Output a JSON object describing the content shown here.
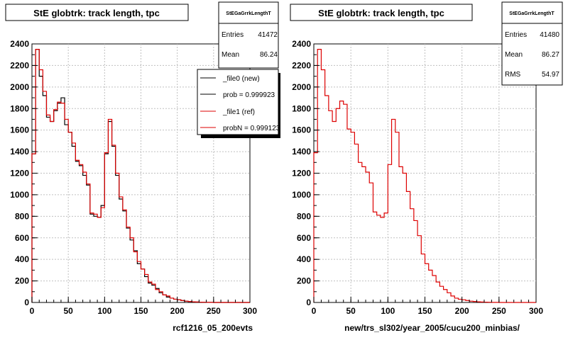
{
  "chart_data": [
    {
      "type": "histogram",
      "title": "StE globtrk: track length, tpc",
      "xlabel": "rcf1216_05_200evts",
      "xlim": [
        0,
        300
      ],
      "ylim": [
        0,
        2400
      ],
      "x_ticks": [
        0,
        50,
        100,
        150,
        200,
        250,
        300
      ],
      "y_ticks": [
        0,
        200,
        400,
        600,
        800,
        1000,
        1200,
        1400,
        1600,
        1800,
        2000,
        2200,
        2400
      ],
      "grid": true,
      "bin_width": 5,
      "stats": {
        "name": "StEGaGrrkLengthT",
        "entries_label": "Entries",
        "entries": "41472",
        "mean_label": "Mean",
        "mean": "86.24"
      },
      "legend": {
        "placement": "top-right",
        "entries": [
          "_file0 (new)",
          "prob = 0.999923",
          "_file1 (ref)",
          "probN = 0.999123"
        ]
      },
      "series": [
        {
          "color": "#000000",
          "values": [
            1380,
            2350,
            2100,
            1920,
            1720,
            1680,
            1780,
            1850,
            1900,
            1650,
            1580,
            1450,
            1310,
            1270,
            1180,
            1090,
            820,
            800,
            790,
            900,
            1380,
            1680,
            1450,
            1180,
            960,
            850,
            690,
            580,
            480,
            360,
            310,
            240,
            180,
            160,
            130,
            90,
            70,
            50,
            40,
            30,
            25,
            18,
            12,
            9,
            6,
            4,
            3,
            2,
            1,
            1,
            0,
            0,
            0,
            0,
            0,
            0,
            0,
            0,
            0,
            0
          ]
        },
        {
          "color": "#dd0000",
          "values": [
            1380,
            2350,
            2160,
            1960,
            1740,
            1680,
            1790,
            1860,
            1850,
            1700,
            1580,
            1480,
            1320,
            1280,
            1210,
            1100,
            830,
            820,
            790,
            880,
            1390,
            1700,
            1460,
            1200,
            980,
            860,
            700,
            600,
            470,
            380,
            310,
            260,
            190,
            170,
            120,
            100,
            70,
            60,
            40,
            30,
            25,
            18,
            12,
            9,
            6,
            4,
            3,
            2,
            1,
            1,
            0,
            0,
            0,
            0,
            0,
            0,
            0,
            0,
            0,
            0
          ]
        }
      ]
    },
    {
      "type": "histogram",
      "title": "StE globtrk: track length, tpc",
      "xlabel": "new/trs_sl302/year_2005/cucu200_minbias/",
      "xlim": [
        0,
        300
      ],
      "ylim": [
        0,
        2400
      ],
      "x_ticks": [
        0,
        50,
        100,
        150,
        200,
        250,
        300
      ],
      "y_ticks": [
        0,
        200,
        400,
        600,
        800,
        1000,
        1200,
        1400,
        1600,
        1800,
        2000,
        2200,
        2400
      ],
      "grid": true,
      "bin_width": 5,
      "stats": {
        "name": "StEGaGrrkLengthT",
        "entries_label": "Entries",
        "entries": "41480",
        "mean_label": "Mean",
        "mean": "86.27",
        "rms_label": "RMS",
        "rms": "54.97"
      },
      "series": [
        {
          "color": "#dd0000",
          "values": [
            1390,
            2350,
            2160,
            1920,
            1780,
            1680,
            1800,
            1870,
            1840,
            1610,
            1580,
            1470,
            1300,
            1260,
            1210,
            1110,
            840,
            810,
            790,
            830,
            1280,
            1700,
            1580,
            1260,
            1200,
            1030,
            870,
            760,
            620,
            450,
            360,
            300,
            250,
            190,
            150,
            120,
            90,
            60,
            40,
            30,
            25,
            18,
            12,
            9,
            6,
            4,
            3,
            2,
            1,
            1,
            0,
            0,
            0,
            0,
            0,
            0,
            0,
            0,
            0,
            0
          ]
        }
      ]
    }
  ]
}
